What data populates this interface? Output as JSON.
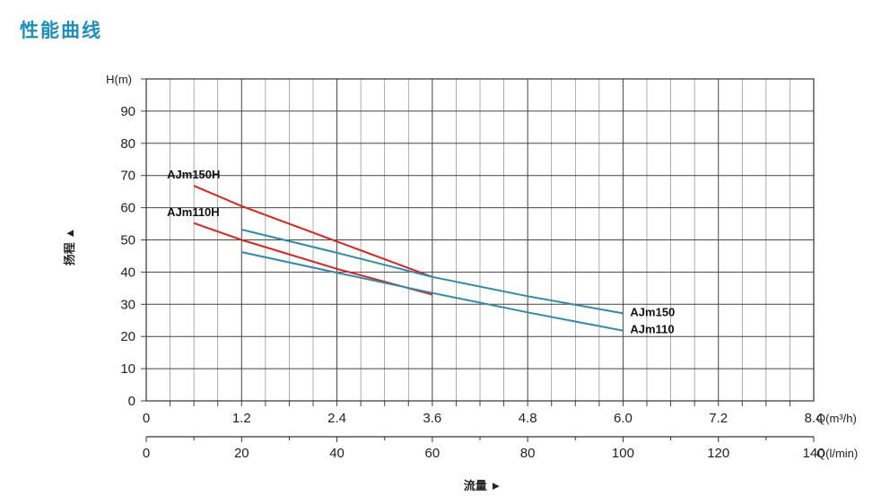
{
  "page": {
    "title": "性能曲线"
  },
  "chart_data": {
    "type": "line",
    "ylabel": "扬程 ▲",
    "yunit": "H(m)",
    "ylim": [
      0,
      100
    ],
    "yticks": [
      "0",
      "10",
      "20",
      "30",
      "40",
      "50",
      "60",
      "70",
      "80",
      "90"
    ],
    "xlim": [
      0,
      8.4
    ],
    "xticks": [
      "0",
      "1.2",
      "2.4",
      "3.6",
      "4.8",
      "6.0",
      "7.2",
      "8.4"
    ],
    "xunit": "Q(m³/h)",
    "x2ticks": [
      "0",
      "20",
      "40",
      "60",
      "80",
      "100",
      "120",
      "140"
    ],
    "x2unit": "Q(l/min)",
    "xlabel": "流量 ►",
    "grid": true,
    "series": [
      {
        "name": "AJm150H",
        "color": "#e0211c",
        "x": [
          0.6,
          1.2,
          2.4,
          3.6
        ],
        "y": [
          66.8,
          60.5,
          49.5,
          38.5
        ]
      },
      {
        "name": "AJm110H",
        "color": "#e0211c",
        "x": [
          0.6,
          1.2,
          2.4,
          3.6
        ],
        "y": [
          55.2,
          50.0,
          41.0,
          33.0
        ]
      },
      {
        "name": "AJm150",
        "color": "#2a8bb3",
        "x": [
          1.2,
          2.4,
          3.6,
          4.8,
          6.0
        ],
        "y": [
          53.2,
          46.0,
          38.5,
          32.5,
          27.2
        ]
      },
      {
        "name": "AJm110",
        "color": "#2a8bb3",
        "x": [
          1.2,
          2.4,
          3.6,
          4.8,
          6.0
        ],
        "y": [
          46.2,
          39.8,
          33.5,
          27.5,
          21.8
        ]
      }
    ]
  }
}
